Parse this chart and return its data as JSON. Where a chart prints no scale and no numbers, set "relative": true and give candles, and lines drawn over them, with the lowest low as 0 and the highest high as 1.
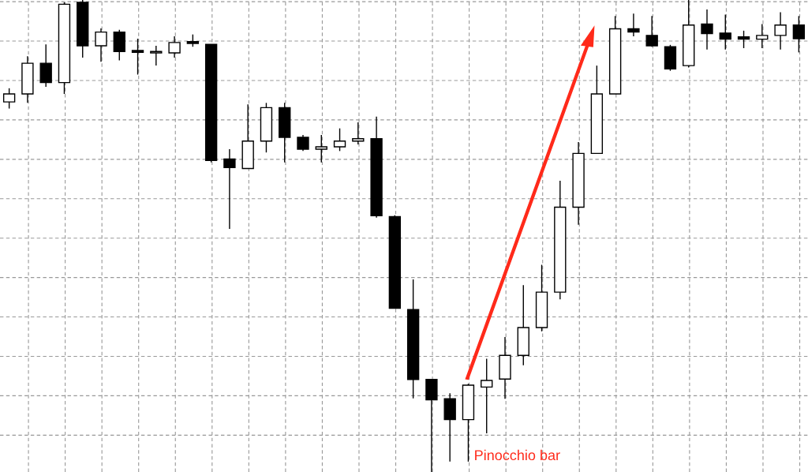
{
  "chart_data": {
    "type": "candlestick",
    "relative": true,
    "grid": true,
    "categories": [
      null,
      null,
      null,
      null,
      null,
      null,
      null,
      null,
      null,
      null,
      null,
      null,
      null,
      null,
      null,
      null,
      null,
      null,
      null,
      null,
      null,
      null,
      null,
      null,
      null,
      null,
      null,
      null,
      null,
      null,
      null,
      null,
      null,
      null,
      null,
      null,
      null,
      null,
      null,
      null,
      null,
      null,
      null,
      null
    ],
    "ohlc": [
      [
        0.784,
        0.813,
        0.77,
        0.801
      ],
      [
        0.801,
        0.881,
        0.782,
        0.866
      ],
      [
        0.866,
        0.906,
        0.816,
        0.825
      ],
      [
        0.825,
        0.995,
        0.801,
        0.991
      ],
      [
        0.995,
        1.0,
        0.878,
        0.903
      ],
      [
        0.903,
        0.94,
        0.869,
        0.932
      ],
      [
        0.932,
        0.937,
        0.872,
        0.891
      ],
      [
        0.893,
        0.918,
        0.842,
        0.889
      ],
      [
        0.888,
        0.903,
        0.861,
        0.891
      ],
      [
        0.888,
        0.923,
        0.878,
        0.91
      ],
      [
        0.912,
        0.927,
        0.901,
        0.908
      ],
      [
        0.906,
        0.906,
        0.656,
        0.66
      ],
      [
        0.663,
        0.684,
        0.515,
        0.645
      ],
      [
        0.643,
        0.779,
        0.643,
        0.701
      ],
      [
        0.701,
        0.782,
        0.677,
        0.772
      ],
      [
        0.772,
        0.782,
        0.656,
        0.709
      ],
      [
        0.709,
        0.714,
        0.68,
        0.684
      ],
      [
        0.684,
        0.714,
        0.656,
        0.689
      ],
      [
        0.689,
        0.728,
        0.68,
        0.701
      ],
      [
        0.701,
        0.741,
        0.694,
        0.706
      ],
      [
        0.706,
        0.753,
        0.539,
        0.543
      ],
      [
        0.541,
        0.544,
        0.347,
        0.347
      ],
      [
        0.344,
        0.408,
        0.156,
        0.196
      ],
      [
        0.196,
        0.196,
        0.0,
        0.153
      ],
      [
        0.155,
        0.167,
        0.022,
        0.111
      ],
      [
        0.111,
        0.187,
        0.022,
        0.184
      ],
      [
        0.18,
        0.24,
        0.082,
        0.194
      ],
      [
        0.197,
        0.286,
        0.155,
        0.247
      ],
      [
        0.247,
        0.396,
        0.226,
        0.306
      ],
      [
        0.306,
        0.439,
        0.298,
        0.381
      ],
      [
        0.381,
        0.617,
        0.366,
        0.561
      ],
      [
        0.561,
        0.699,
        0.524,
        0.675
      ],
      [
        0.675,
        0.861,
        0.675,
        0.801
      ],
      [
        0.801,
        0.966,
        0.801,
        0.939
      ],
      [
        0.939,
        0.971,
        0.923,
        0.932
      ],
      [
        0.925,
        0.966,
        0.901,
        0.903
      ],
      [
        0.901,
        0.905,
        0.85,
        0.854
      ],
      [
        0.861,
        1.0,
        0.857,
        0.947
      ],
      [
        0.949,
        0.98,
        0.895,
        0.929
      ],
      [
        0.93,
        0.969,
        0.895,
        0.917
      ],
      [
        0.922,
        0.935,
        0.898,
        0.917
      ],
      [
        0.917,
        0.949,
        0.898,
        0.925
      ],
      [
        0.925,
        0.974,
        0.895,
        0.947
      ],
      [
        0.947,
        0.966,
        0.889,
        0.918
      ]
    ],
    "annotations": [
      "Pinocchio bar"
    ]
  }
}
